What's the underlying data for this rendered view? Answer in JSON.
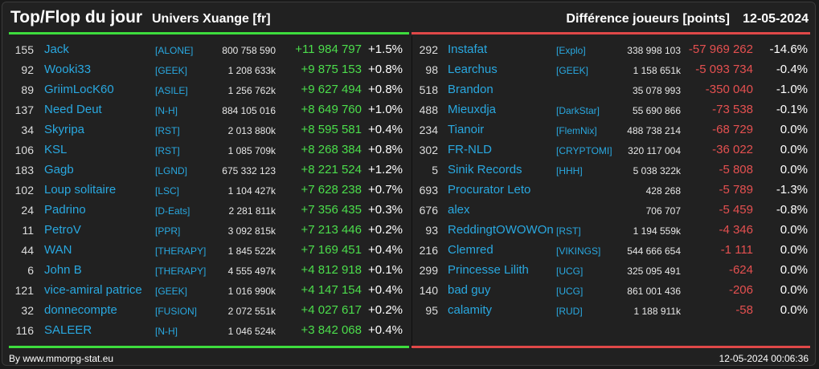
{
  "header": {
    "title": "Top/Flop du jour",
    "universe": "Univers Xuange [fr]",
    "metric": "Différence joueurs [points]",
    "date": "12-05-2024"
  },
  "top": [
    {
      "rank": "155",
      "name": "Jack",
      "tag": "[ALONE]",
      "points": "800 758 590",
      "diff": "+11 984 797",
      "pct": "+1.5%"
    },
    {
      "rank": "92",
      "name": "Wooki33",
      "tag": "[GEEK]",
      "points": "1 208 633k",
      "diff": "+9 875 153",
      "pct": "+0.8%"
    },
    {
      "rank": "89",
      "name": "GriimLocK60",
      "tag": "[ASILE]",
      "points": "1 256 762k",
      "diff": "+9 627 494",
      "pct": "+0.8%"
    },
    {
      "rank": "137",
      "name": "Need Deut",
      "tag": "[N-H]",
      "points": "884 105 016",
      "diff": "+8 649 760",
      "pct": "+1.0%"
    },
    {
      "rank": "34",
      "name": "Skyripa",
      "tag": "[RST]",
      "points": "2 013 880k",
      "diff": "+8 595 581",
      "pct": "+0.4%"
    },
    {
      "rank": "106",
      "name": "KSL",
      "tag": "[RST]",
      "points": "1 085 709k",
      "diff": "+8 268 384",
      "pct": "+0.8%"
    },
    {
      "rank": "183",
      "name": "Gagb",
      "tag": "[LGND]",
      "points": "675 332 123",
      "diff": "+8 221 524",
      "pct": "+1.2%"
    },
    {
      "rank": "102",
      "name": "Loup solitaire",
      "tag": "[LSC]",
      "points": "1 104 427k",
      "diff": "+7 628 238",
      "pct": "+0.7%"
    },
    {
      "rank": "24",
      "name": "Padrino",
      "tag": "[D-Eats]",
      "points": "2 281 811k",
      "diff": "+7 356 435",
      "pct": "+0.3%"
    },
    {
      "rank": "11",
      "name": "PetroV",
      "tag": "[PPR]",
      "points": "3 092 815k",
      "diff": "+7 213 446",
      "pct": "+0.2%"
    },
    {
      "rank": "44",
      "name": "WAN",
      "tag": "[THERAPY]",
      "points": "1 845 522k",
      "diff": "+7 169 451",
      "pct": "+0.4%"
    },
    {
      "rank": "6",
      "name": "John B",
      "tag": "[THERAPY]",
      "points": "4 555 497k",
      "diff": "+4 812 918",
      "pct": "+0.1%"
    },
    {
      "rank": "121",
      "name": "vice-amiral patrice",
      "tag": "[GEEK]",
      "points": "1 016 990k",
      "diff": "+4 147 154",
      "pct": "+0.4%"
    },
    {
      "rank": "32",
      "name": "donnecompte",
      "tag": "[FUSION]",
      "points": "2 072 551k",
      "diff": "+4 027 617",
      "pct": "+0.2%"
    },
    {
      "rank": "116",
      "name": "SALEER",
      "tag": "[N-H]",
      "points": "1 046 524k",
      "diff": "+3 842 068",
      "pct": "+0.4%"
    }
  ],
  "flop": [
    {
      "rank": "292",
      "name": "Instafat",
      "tag": "[Explo]",
      "points": "338 998 103",
      "diff": "-57 969 262",
      "pct": "-14.6%"
    },
    {
      "rank": "98",
      "name": "Learchus",
      "tag": "[GEEK]",
      "points": "1 158 651k",
      "diff": "-5 093 734",
      "pct": "-0.4%"
    },
    {
      "rank": "518",
      "name": "Brandon",
      "tag": "",
      "points": "35 078 993",
      "diff": "-350 040",
      "pct": "-1.0%"
    },
    {
      "rank": "488",
      "name": "Mieuxdja",
      "tag": "[DarkStar]",
      "points": "55 690 866",
      "diff": "-73 538",
      "pct": "-0.1%"
    },
    {
      "rank": "234",
      "name": "Tianoir",
      "tag": "[FlemNix]",
      "points": "488 738 214",
      "diff": "-68 729",
      "pct": "0.0%"
    },
    {
      "rank": "302",
      "name": "FR-NLD",
      "tag": "[CRYPTOMI]",
      "points": "320 117 004",
      "diff": "-36 022",
      "pct": "0.0%"
    },
    {
      "rank": "5",
      "name": "Sinik Records",
      "tag": "[HHH]",
      "points": "5 038 322k",
      "diff": "-5 808",
      "pct": "0.0%"
    },
    {
      "rank": "693",
      "name": "Procurator Leto",
      "tag": "",
      "points": "428 268",
      "diff": "-5 789",
      "pct": "-1.3%"
    },
    {
      "rank": "676",
      "name": "alex",
      "tag": "",
      "points": "706 707",
      "diff": "-5 459",
      "pct": "-0.8%"
    },
    {
      "rank": "93",
      "name": "ReddingtOWOWOn",
      "tag": "[RST]",
      "points": "1 194 559k",
      "diff": "-4 346",
      "pct": "0.0%"
    },
    {
      "rank": "216",
      "name": "Clemred",
      "tag": "[VIKINGS]",
      "points": "544 666 654",
      "diff": "-1 111",
      "pct": "0.0%"
    },
    {
      "rank": "299",
      "name": "Princesse Lilith",
      "tag": "[UCG]",
      "points": "325 095 491",
      "diff": "-624",
      "pct": "0.0%"
    },
    {
      "rank": "140",
      "name": "bad guy",
      "tag": "[UCG]",
      "points": "861 001 436",
      "diff": "-206",
      "pct": "0.0%"
    },
    {
      "rank": "95",
      "name": "calamity",
      "tag": "[RUD]",
      "points": "1 188 911k",
      "diff": "-58",
      "pct": "0.0%"
    }
  ],
  "footer": {
    "source": "By www.mmorpg-stat.eu",
    "timestamp": "12-05-2024 00:06:36"
  }
}
